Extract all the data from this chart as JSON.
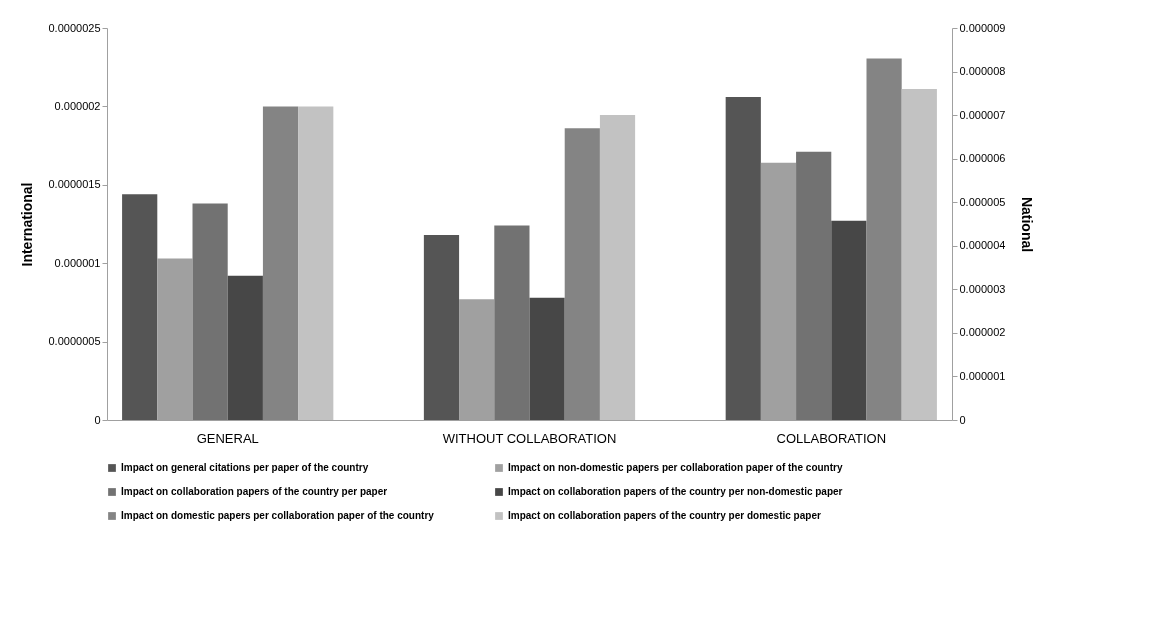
{
  "chart_data": {
    "type": "bar",
    "ylabel": "International",
    "y2label": "National",
    "categories": [
      "GENERAL",
      "WITHOUT COLLABORATION",
      "COLLABORATION"
    ],
    "series": [
      {
        "name": "Impact on general citations per paper of the country",
        "color": "#555555",
        "values": [
          1.44e-06,
          1.18e-06,
          2.06e-06
        ]
      },
      {
        "name": "Impact on non-domestic papers per collaboration paper of the country",
        "color": "#a0a0a0",
        "values": [
          1.03e-06,
          7.7e-07,
          1.64e-06
        ]
      },
      {
        "name": "Impact on collaboration papers of the country per paper",
        "color": "#727272",
        "values": [
          1.38e-06,
          1.24e-06,
          1.71e-06
        ]
      },
      {
        "name": "Impact on collaboration papers of the country per non-domestic paper",
        "color": "#474747",
        "values": [
          9.2e-07,
          7.8e-07,
          1.27e-06
        ]
      },
      {
        "name": "Impact on domestic papers per collaboration paper of the country",
        "color": "#848484",
        "axis": "y2",
        "values": [
          7.2e-06,
          6.7e-06,
          8.3e-06
        ]
      },
      {
        "name": "Impact on collaboration papers of the country per domestic paper",
        "color": "#c2c2c2",
        "axis": "y2",
        "values": [
          7.2e-06,
          7e-06,
          7.6e-06
        ]
      }
    ],
    "ylim": [
      0,
      2.5e-06
    ],
    "yticks": [
      0,
      {
        "value": 5e-07,
        "label": "0.0000005"
      },
      {
        "value": 1e-06,
        "label": "0.000001"
      },
      {
        "value": 1.5e-06,
        "label": "0.0000015"
      },
      {
        "value": 2e-06,
        "label": "0.000002"
      },
      {
        "value": 2.5e-06,
        "label": "0.0000025"
      }
    ],
    "y2lim": [
      0,
      9e-06
    ],
    "y2ticks": [
      0,
      {
        "value": 1e-06,
        "label": "0.000001"
      },
      {
        "value": 2e-06,
        "label": "0.000002"
      },
      {
        "value": 3e-06,
        "label": "0.000003"
      },
      {
        "value": 4e-06,
        "label": "0.000004"
      },
      {
        "value": 5e-06,
        "label": "0.000005"
      },
      {
        "value": 6e-06,
        "label": "0.000006"
      },
      {
        "value": 7e-06,
        "label": "0.000007"
      },
      {
        "value": 8e-06,
        "label": "0.000008"
      },
      {
        "value": 9e-06,
        "label": "0.000009"
      }
    ],
    "legend": "bottom",
    "grid": false
  }
}
